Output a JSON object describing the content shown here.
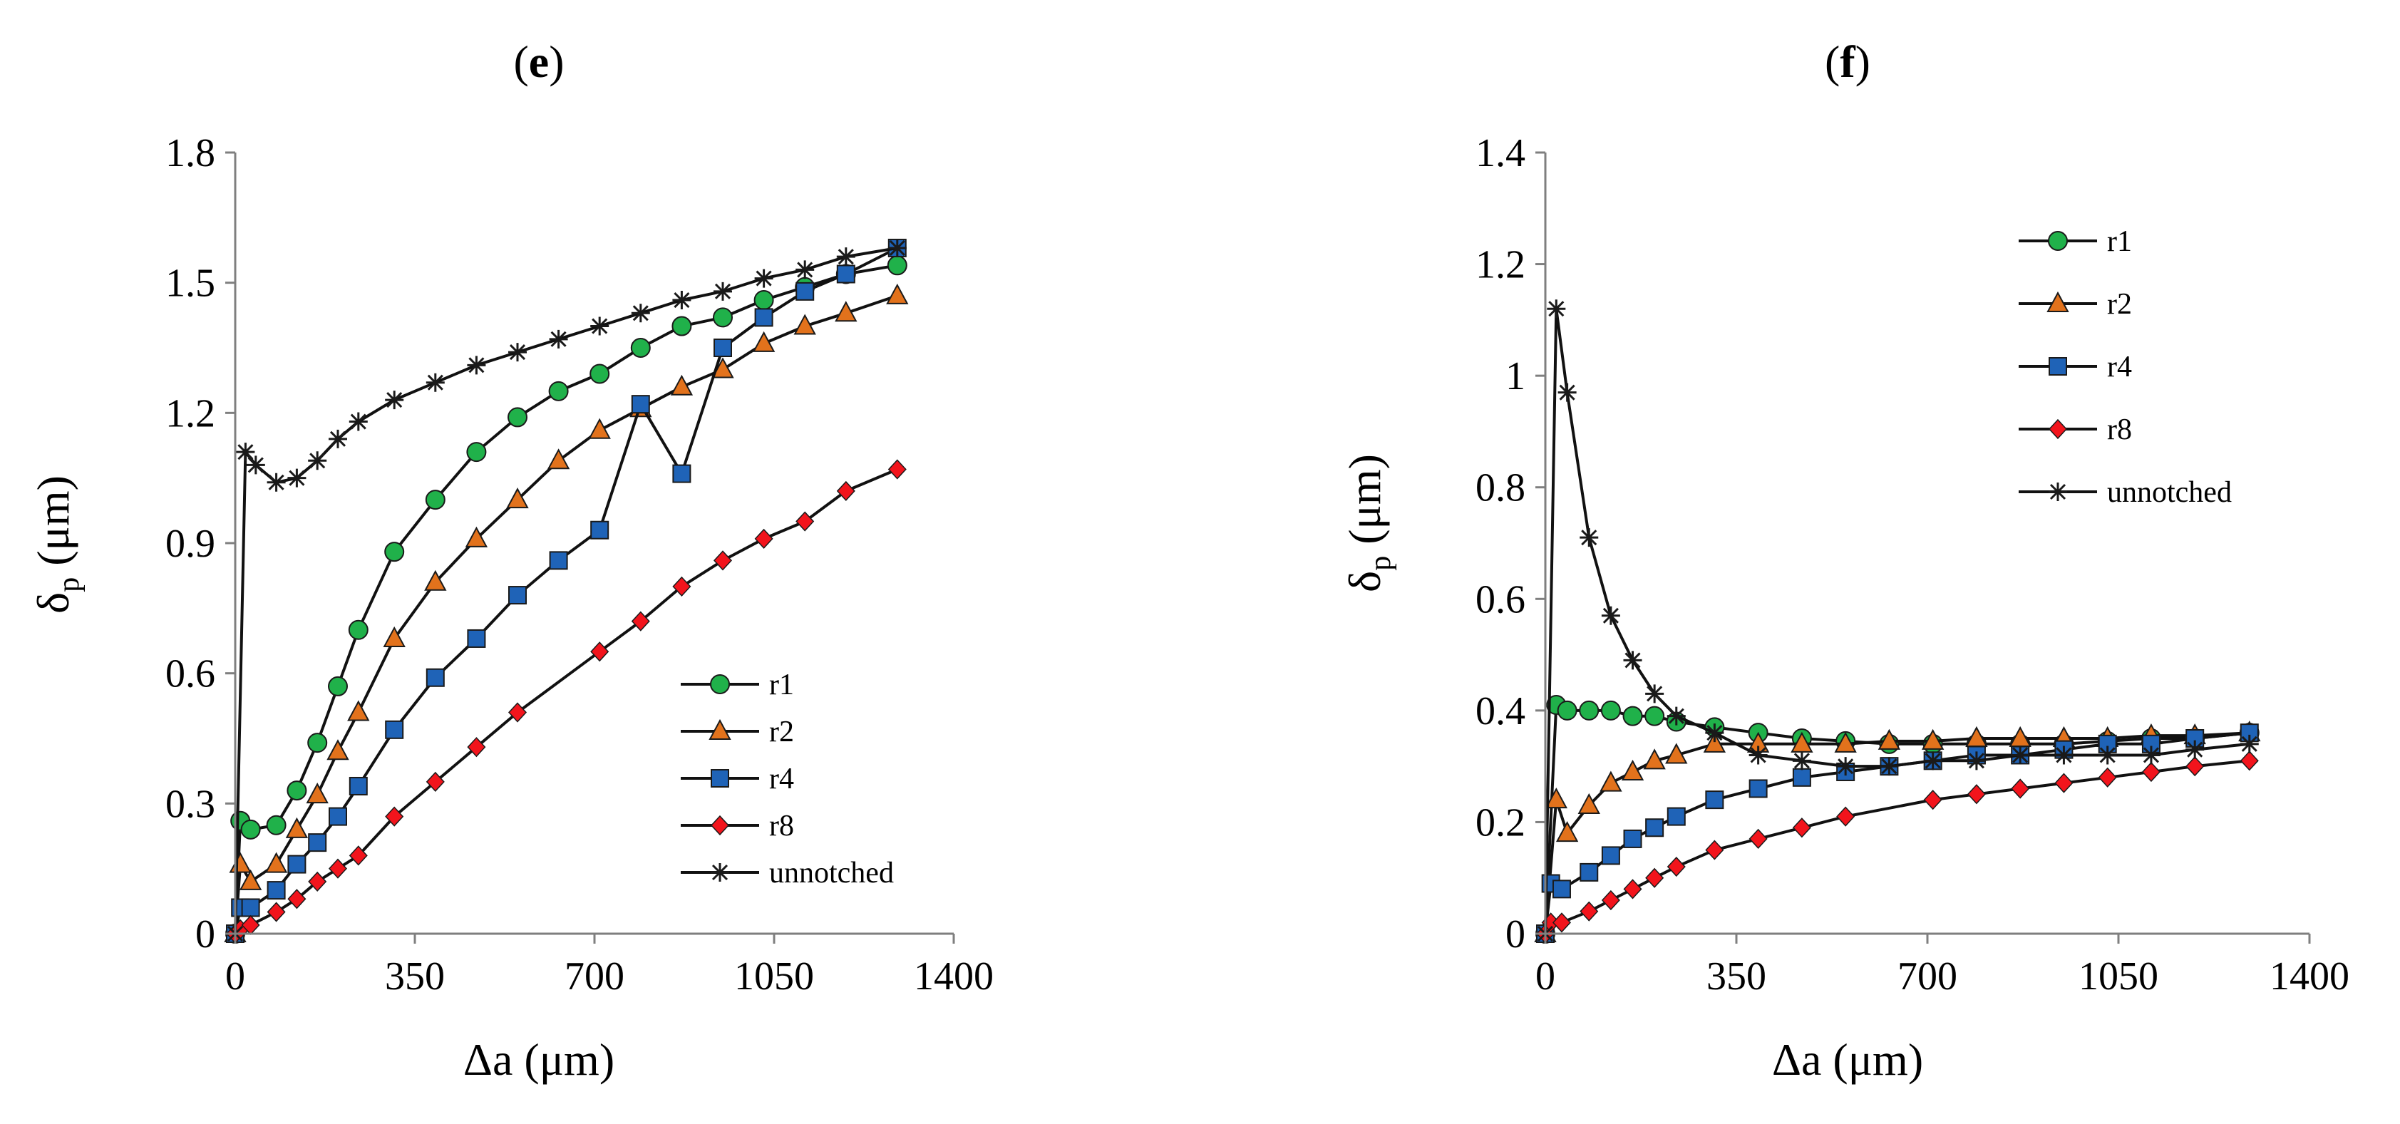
{
  "figure": {
    "colors": {
      "r1": "#20b14a",
      "r2": "#e2721c",
      "r4": "#1f63b7",
      "r8": "#f2141c",
      "unnotched": "#1a1a1a",
      "line": "#111111"
    }
  },
  "chart_data": [
    {
      "panel": "e",
      "label_open": "(",
      "label_letter": "e",
      "label_close": ")",
      "type": "line",
      "xlabel": "Δa (μm)",
      "ylabel": "δp (μm)",
      "ylabel_main": "δ",
      "ylabel_sub": "p",
      "ylabel_rest": " (μm)",
      "xlim": [
        0,
        1400
      ],
      "ylim": [
        0,
        1.8
      ],
      "xticks": [
        0,
        350,
        700,
        1050,
        1400
      ],
      "xtick_labels": [
        "0",
        "350",
        "700",
        "1050",
        "1400"
      ],
      "yticks": [
        0,
        0.3,
        0.6,
        0.9,
        1.2,
        1.5,
        1.8
      ],
      "ytick_labels": [
        "0",
        "0.3",
        "0.6",
        "0.9",
        "1.2",
        "1.5",
        "1.8"
      ],
      "legend_position": "bottom-right",
      "series": [
        {
          "name": "r1",
          "marker": "circle",
          "x": [
            0,
            10,
            30,
            80,
            120,
            160,
            200,
            240,
            310,
            390,
            470,
            550,
            630,
            710,
            790,
            870,
            950,
            1030,
            1110,
            1190,
            1290
          ],
          "y": [
            0,
            0.26,
            0.24,
            0.25,
            0.33,
            0.44,
            0.57,
            0.7,
            0.88,
            1.0,
            1.11,
            1.19,
            1.25,
            1.29,
            1.35,
            1.4,
            1.42,
            1.46,
            1.49,
            1.52,
            1.54
          ]
        },
        {
          "name": "r2",
          "marker": "triangle",
          "x": [
            0,
            10,
            30,
            80,
            120,
            160,
            200,
            240,
            310,
            390,
            470,
            550,
            630,
            710,
            790,
            870,
            950,
            1030,
            1110,
            1190,
            1290
          ],
          "y": [
            0,
            0.16,
            0.12,
            0.16,
            0.24,
            0.32,
            0.42,
            0.51,
            0.68,
            0.81,
            0.91,
            1.0,
            1.09,
            1.16,
            1.21,
            1.26,
            1.3,
            1.36,
            1.4,
            1.43,
            1.47
          ]
        },
        {
          "name": "r4",
          "marker": "square",
          "x": [
            0,
            10,
            30,
            80,
            120,
            160,
            200,
            240,
            310,
            390,
            470,
            550,
            630,
            710,
            790,
            870,
            950,
            1030,
            1110,
            1190,
            1290
          ],
          "y": [
            0,
            0.06,
            0.06,
            0.1,
            0.16,
            0.21,
            0.27,
            0.34,
            0.47,
            0.59,
            0.68,
            0.78,
            0.86,
            0.93,
            1.22,
            1.06,
            1.35,
            1.42,
            1.48,
            1.52,
            1.58
          ]
        },
        {
          "name": "r8",
          "marker": "diamond",
          "x": [
            0,
            10,
            30,
            80,
            120,
            160,
            200,
            240,
            310,
            390,
            470,
            550,
            710,
            790,
            870,
            950,
            1030,
            1110,
            1190,
            1290
          ],
          "y": [
            0,
            0.01,
            0.02,
            0.05,
            0.08,
            0.12,
            0.15,
            0.18,
            0.27,
            0.35,
            0.43,
            0.51,
            0.65,
            0.72,
            0.8,
            0.86,
            0.91,
            0.95,
            1.02,
            1.07
          ]
        },
        {
          "name": "unnotched",
          "marker": "star",
          "x": [
            0,
            20,
            40,
            80,
            120,
            160,
            200,
            240,
            310,
            390,
            470,
            550,
            630,
            710,
            790,
            870,
            950,
            1030,
            1110,
            1190,
            1290
          ],
          "y": [
            0,
            1.11,
            1.08,
            1.04,
            1.05,
            1.09,
            1.14,
            1.18,
            1.23,
            1.27,
            1.31,
            1.34,
            1.37,
            1.4,
            1.43,
            1.46,
            1.48,
            1.51,
            1.53,
            1.56,
            1.58
          ]
        }
      ]
    },
    {
      "panel": "f",
      "label_open": "(",
      "label_letter": "f",
      "label_close": ")",
      "type": "line",
      "xlabel": "Δa (μm)",
      "ylabel": "δp (μm)",
      "ylabel_main": "δ",
      "ylabel_sub": "p",
      "ylabel_rest": " (μm)",
      "xlim": [
        0,
        1400
      ],
      "ylim": [
        0,
        1.4
      ],
      "xticks": [
        0,
        350,
        700,
        1050,
        1400
      ],
      "xtick_labels": [
        "0",
        "350",
        "700",
        "1050",
        "1400"
      ],
      "yticks": [
        0,
        0.2,
        0.4,
        0.6,
        0.8,
        1.0,
        1.2,
        1.4
      ],
      "ytick_labels": [
        "0",
        "0.2",
        "0.4",
        "0.6",
        "0.8",
        "1",
        "1.2",
        "1.4"
      ],
      "legend_position": "top-right",
      "series": [
        {
          "name": "r1",
          "marker": "circle",
          "x": [
            0,
            20,
            40,
            80,
            120,
            160,
            200,
            240,
            310,
            390,
            470,
            550,
            630,
            710,
            790,
            870,
            950,
            1030,
            1110,
            1190,
            1290
          ],
          "y": [
            0,
            0.41,
            0.4,
            0.4,
            0.4,
            0.39,
            0.39,
            0.38,
            0.37,
            0.36,
            0.35,
            0.345,
            0.34,
            0.34,
            0.34,
            0.34,
            0.34,
            0.345,
            0.35,
            0.35,
            0.36
          ]
        },
        {
          "name": "r2",
          "marker": "triangle",
          "x": [
            0,
            20,
            40,
            80,
            120,
            160,
            200,
            240,
            310,
            390,
            470,
            550,
            630,
            710,
            790,
            870,
            950,
            1030,
            1110,
            1190,
            1290
          ],
          "y": [
            0,
            0.24,
            0.18,
            0.23,
            0.27,
            0.29,
            0.31,
            0.32,
            0.34,
            0.34,
            0.34,
            0.34,
            0.345,
            0.345,
            0.35,
            0.35,
            0.35,
            0.35,
            0.355,
            0.355,
            0.36
          ]
        },
        {
          "name": "r4",
          "marker": "square",
          "x": [
            0,
            10,
            30,
            80,
            120,
            160,
            200,
            240,
            310,
            390,
            470,
            550,
            630,
            710,
            790,
            870,
            950,
            1030,
            1110,
            1190,
            1290
          ],
          "y": [
            0,
            0.09,
            0.08,
            0.11,
            0.14,
            0.17,
            0.19,
            0.21,
            0.24,
            0.26,
            0.28,
            0.29,
            0.3,
            0.31,
            0.32,
            0.32,
            0.33,
            0.34,
            0.34,
            0.35,
            0.36
          ]
        },
        {
          "name": "r8",
          "marker": "diamond",
          "x": [
            0,
            10,
            30,
            80,
            120,
            160,
            200,
            240,
            310,
            390,
            470,
            550,
            710,
            790,
            870,
            950,
            1030,
            1110,
            1190,
            1290
          ],
          "y": [
            0,
            0.02,
            0.02,
            0.04,
            0.06,
            0.08,
            0.1,
            0.12,
            0.15,
            0.17,
            0.19,
            0.21,
            0.24,
            0.25,
            0.26,
            0.27,
            0.28,
            0.29,
            0.3,
            0.31
          ]
        },
        {
          "name": "unnotched",
          "marker": "star",
          "x": [
            0,
            20,
            40,
            80,
            120,
            160,
            200,
            240,
            310,
            390,
            470,
            550,
            630,
            710,
            790,
            870,
            950,
            1030,
            1110,
            1190,
            1290
          ],
          "y": [
            0,
            1.12,
            0.97,
            0.71,
            0.57,
            0.49,
            0.43,
            0.39,
            0.36,
            0.32,
            0.31,
            0.3,
            0.3,
            0.31,
            0.31,
            0.32,
            0.32,
            0.32,
            0.32,
            0.33,
            0.34
          ]
        }
      ]
    }
  ]
}
